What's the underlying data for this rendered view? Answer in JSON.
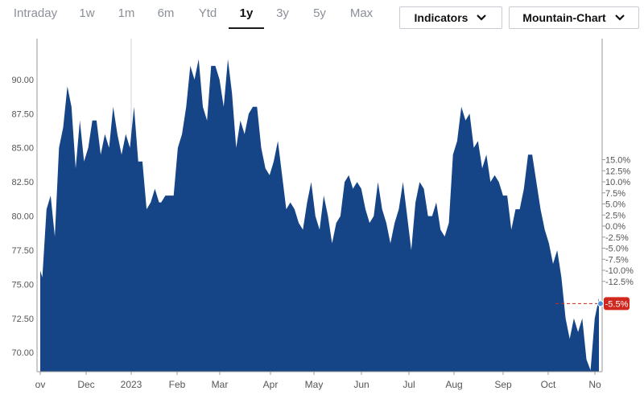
{
  "range_tabs": [
    {
      "label": "Intraday",
      "active": false
    },
    {
      "label": "1w",
      "active": false
    },
    {
      "label": "1m",
      "active": false
    },
    {
      "label": "6m",
      "active": false
    },
    {
      "label": "Ytd",
      "active": false
    },
    {
      "label": "1y",
      "active": true
    },
    {
      "label": "3y",
      "active": false
    },
    {
      "label": "5y",
      "active": false
    },
    {
      "label": "Max",
      "active": false
    }
  ],
  "indicators_label": "Indicators",
  "chart_type_label": "Mountain-Chart",
  "colors": {
    "area": "#164587",
    "marker": "#d0281e",
    "last_point": "#4a90e2"
  },
  "chart_data": {
    "type": "area",
    "title": "",
    "xlabel": "",
    "ylabel": "",
    "left_axis": {
      "ylim": [
        68.6,
        93.0
      ],
      "ticks": [
        "90.00",
        "87.50",
        "85.00",
        "82.50",
        "80.00",
        "77.50",
        "75.00",
        "72.50",
        "70.00"
      ]
    },
    "right_axis": {
      "ticks": [
        "15.0%",
        "12.5%",
        "10.0%",
        "7.5%",
        "5.0%",
        "2.5%",
        "0.0%",
        "-2.5%",
        "-5.0%",
        "-7.5%",
        "-10.0%",
        "-12.5%"
      ]
    },
    "x_ticks": [
      "ov",
      "Dec",
      "2023",
      "Feb",
      "Mar",
      "Apr",
      "May",
      "Jun",
      "Jul",
      "Aug",
      "Sep",
      "Oct",
      "No"
    ],
    "last_change_label": "-5.5%",
    "grid": false,
    "series": [
      {
        "values": [
          [
            0.0,
            76.0
          ],
          [
            1.0,
            75.5
          ],
          [
            3.0,
            80.5
          ],
          [
            5.0,
            81.5
          ],
          [
            7.0,
            78.5
          ],
          [
            9.0,
            85.0
          ],
          [
            11.0,
            86.5
          ],
          [
            13.0,
            89.5
          ],
          [
            15.0,
            88.0
          ],
          [
            17.0,
            83.5
          ],
          [
            19.0,
            87.0
          ],
          [
            21.0,
            84.0
          ],
          [
            23.0,
            85.0
          ],
          [
            25.0,
            87.0
          ],
          [
            27.0,
            87.0
          ],
          [
            29.0,
            84.5
          ],
          [
            31.0,
            86.0
          ],
          [
            33.0,
            85.0
          ],
          [
            35.0,
            88.0
          ],
          [
            37.0,
            86.0
          ],
          [
            39.0,
            84.5
          ],
          [
            41.0,
            86.0
          ],
          [
            43.0,
            85.0
          ],
          [
            45.0,
            88.0
          ],
          [
            47.0,
            84.0
          ],
          [
            49.0,
            84.0
          ],
          [
            51.0,
            80.5
          ],
          [
            53.0,
            81.0
          ],
          [
            55.0,
            82.0
          ],
          [
            57.0,
            81.0
          ],
          [
            58.0,
            81.0
          ],
          [
            60.0,
            81.5
          ],
          [
            62.0,
            81.5
          ],
          [
            64.0,
            81.5
          ],
          [
            66.0,
            85.0
          ],
          [
            68.0,
            86.0
          ],
          [
            70.0,
            88.0
          ],
          [
            72.0,
            91.0
          ],
          [
            74.0,
            90.0
          ],
          [
            76.0,
            91.5
          ],
          [
            78.0,
            88.0
          ],
          [
            80.0,
            87.0
          ],
          [
            82.0,
            91.0
          ],
          [
            84.0,
            91.0
          ],
          [
            86.0,
            90.0
          ],
          [
            88.0,
            88.0
          ],
          [
            90.0,
            91.5
          ],
          [
            92.0,
            89.0
          ],
          [
            94.0,
            85.0
          ],
          [
            96.0,
            87.0
          ],
          [
            98.0,
            86.0
          ],
          [
            100.0,
            87.5
          ],
          [
            102.0,
            88.0
          ],
          [
            104.0,
            88.0
          ],
          [
            106.0,
            85.0
          ],
          [
            108.0,
            83.5
          ],
          [
            110.0,
            83.0
          ],
          [
            112.0,
            84.0
          ],
          [
            114.0,
            85.5
          ],
          [
            116.0,
            83.0
          ],
          [
            118.0,
            80.5
          ],
          [
            120.0,
            81.0
          ],
          [
            122.0,
            80.5
          ],
          [
            124.0,
            79.5
          ],
          [
            126.0,
            79.0
          ],
          [
            128.0,
            81.0
          ],
          [
            130.0,
            82.5
          ],
          [
            132.0,
            80.0
          ],
          [
            134.0,
            79.0
          ],
          [
            136.0,
            81.5
          ],
          [
            138.0,
            80.0
          ],
          [
            140.0,
            78.0
          ],
          [
            142.0,
            79.5
          ],
          [
            144.0,
            80.0
          ],
          [
            146.0,
            82.5
          ],
          [
            148.0,
            83.0
          ],
          [
            150.0,
            82.0
          ],
          [
            152.0,
            82.5
          ],
          [
            154.0,
            82.0
          ],
          [
            156.0,
            80.5
          ],
          [
            158.0,
            79.5
          ],
          [
            160.0,
            80.0
          ],
          [
            162.0,
            82.5
          ],
          [
            164.0,
            80.5
          ],
          [
            166.0,
            79.5
          ],
          [
            168.0,
            78.0
          ],
          [
            170.0,
            79.5
          ],
          [
            172.0,
            80.5
          ],
          [
            174.0,
            82.5
          ],
          [
            176.0,
            80.0
          ],
          [
            178.0,
            77.5
          ],
          [
            180.0,
            81.0
          ],
          [
            182.0,
            82.5
          ],
          [
            184.0,
            82.0
          ],
          [
            186.0,
            80.0
          ],
          [
            188.0,
            80.0
          ],
          [
            190.0,
            81.0
          ],
          [
            192.0,
            79.0
          ],
          [
            194.0,
            78.5
          ],
          [
            196.0,
            79.5
          ],
          [
            198.0,
            84.5
          ],
          [
            200.0,
            85.5
          ],
          [
            202.0,
            88.0
          ],
          [
            204.0,
            87.0
          ],
          [
            206.0,
            87.5
          ],
          [
            208.0,
            85.0
          ],
          [
            210.0,
            85.5
          ],
          [
            212.0,
            83.5
          ],
          [
            214.0,
            84.5
          ],
          [
            216.0,
            82.5
          ],
          [
            218.0,
            83.0
          ],
          [
            220.0,
            82.5
          ],
          [
            222.0,
            81.5
          ],
          [
            224.0,
            81.5
          ],
          [
            226.0,
            79.0
          ],
          [
            228.0,
            80.5
          ],
          [
            230.0,
            80.5
          ],
          [
            232.0,
            82.0
          ],
          [
            234.0,
            84.5
          ],
          [
            236.0,
            84.5
          ],
          [
            238.0,
            82.5
          ],
          [
            240.0,
            80.5
          ],
          [
            242.0,
            79.0
          ],
          [
            244.0,
            78.0
          ],
          [
            246.0,
            76.5
          ],
          [
            248.0,
            77.5
          ],
          [
            250.0,
            75.5
          ],
          [
            252.0,
            72.5
          ],
          [
            254.0,
            71.0
          ],
          [
            256.0,
            72.5
          ],
          [
            258.0,
            71.5
          ],
          [
            260.0,
            72.5
          ],
          [
            262.0,
            69.5
          ],
          [
            264.0,
            68.7
          ],
          [
            266.0,
            72.5
          ],
          [
            268.0,
            74.0
          ]
        ]
      }
    ]
  }
}
